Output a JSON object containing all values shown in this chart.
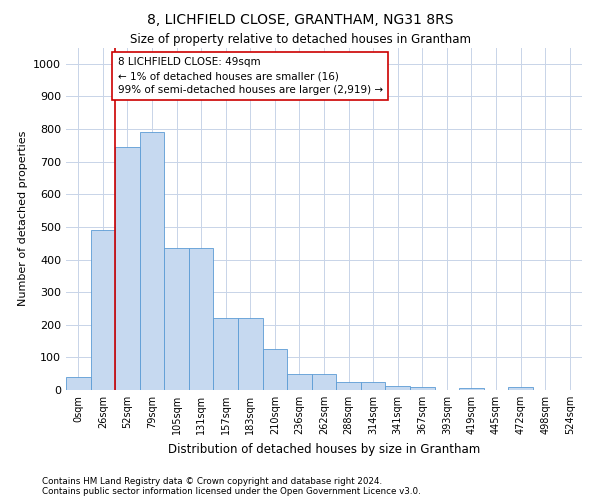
{
  "title1": "8, LICHFIELD CLOSE, GRANTHAM, NG31 8RS",
  "title2": "Size of property relative to detached houses in Grantham",
  "xlabel": "Distribution of detached houses by size in Grantham",
  "ylabel": "Number of detached properties",
  "bin_labels": [
    "0sqm",
    "26sqm",
    "52sqm",
    "79sqm",
    "105sqm",
    "131sqm",
    "157sqm",
    "183sqm",
    "210sqm",
    "236sqm",
    "262sqm",
    "288sqm",
    "314sqm",
    "341sqm",
    "367sqm",
    "393sqm",
    "419sqm",
    "445sqm",
    "472sqm",
    "498sqm",
    "524sqm"
  ],
  "bar_heights": [
    40,
    490,
    745,
    790,
    435,
    435,
    220,
    220,
    125,
    50,
    50,
    25,
    25,
    12,
    10,
    0,
    5,
    0,
    10,
    0,
    0
  ],
  "bar_color": "#c6d9f0",
  "bar_edge_color": "#5b9bd5",
  "vline_x": 1.5,
  "vline_color": "#cc0000",
  "annotation_text": "8 LICHFIELD CLOSE: 49sqm\n← 1% of detached houses are smaller (16)\n99% of semi-detached houses are larger (2,919) →",
  "annotation_box_color": "#ffffff",
  "annotation_box_edge": "#cc0000",
  "ylim": [
    0,
    1050
  ],
  "yticks": [
    0,
    100,
    200,
    300,
    400,
    500,
    600,
    700,
    800,
    900,
    1000
  ],
  "footer1": "Contains HM Land Registry data © Crown copyright and database right 2024.",
  "footer2": "Contains public sector information licensed under the Open Government Licence v3.0.",
  "bg_color": "#ffffff",
  "grid_color": "#c8d4e8"
}
